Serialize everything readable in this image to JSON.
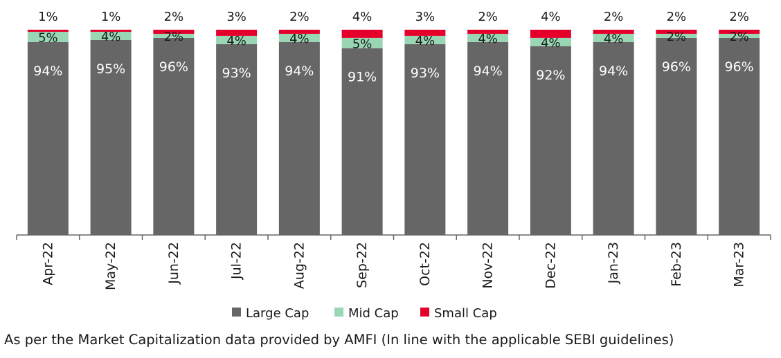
{
  "chart_data": {
    "type": "bar",
    "stacked": true,
    "categories": [
      "Apr-22",
      "May-22",
      "Jun-22",
      "Jul-22",
      "Aug-22",
      "Sep-22",
      "Oct-22",
      "Nov-22",
      "Dec-22",
      "Jan-23",
      "Feb-23",
      "Mar-23"
    ],
    "series": [
      {
        "name": "Large Cap",
        "color": "#666666",
        "values": [
          94,
          95,
          96,
          93,
          94,
          91,
          93,
          94,
          92,
          94,
          96,
          96
        ]
      },
      {
        "name": "Mid Cap",
        "color": "#99d6b3",
        "values": [
          5,
          4,
          2,
          4,
          4,
          5,
          4,
          4,
          4,
          4,
          2,
          2
        ]
      },
      {
        "name": "Small Cap",
        "color": "#e4002b",
        "values": [
          1,
          1,
          2,
          3,
          2,
          4,
          3,
          2,
          4,
          2,
          2,
          2
        ]
      }
    ],
    "ylim": [
      0,
      100
    ],
    "legend_position": "bottom-center",
    "grid": false
  },
  "footnote": "As per the Market Capitalization data provided by AMFI (In line with the applicable SEBI guidelines)"
}
